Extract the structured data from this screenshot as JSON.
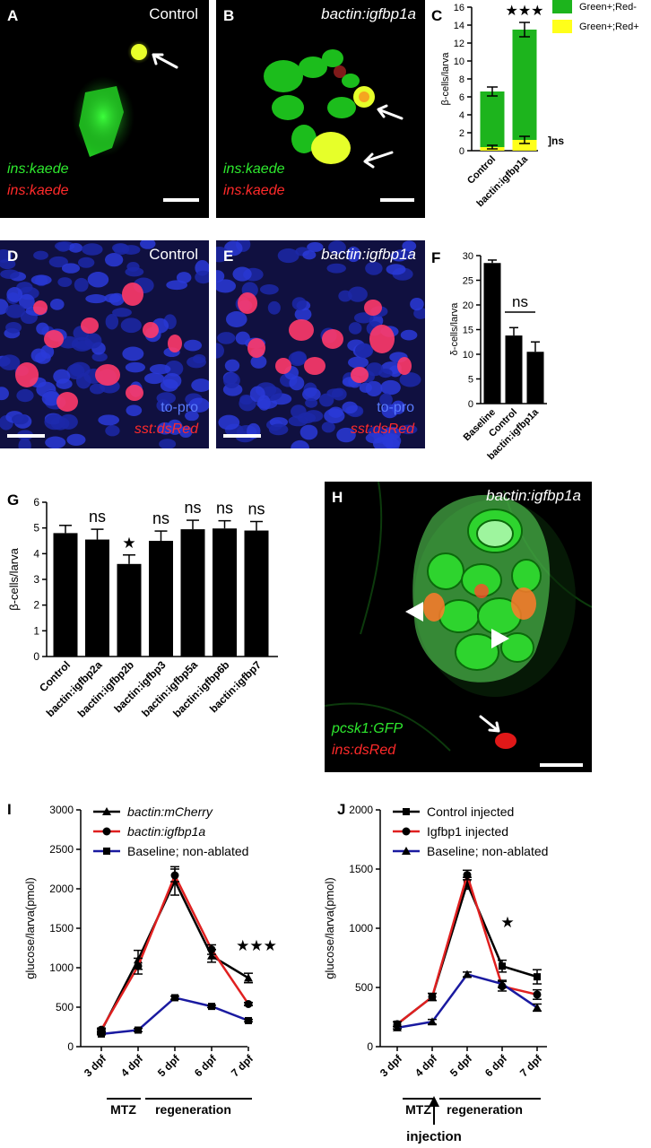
{
  "panels": {
    "A": {
      "label": "A",
      "title": "Control",
      "stain1": "ins:kaede",
      "stain2": "ins:kaede"
    },
    "B": {
      "label": "B",
      "title": "bactin:igfbp1a",
      "stain1": "ins:kaede",
      "stain2": "ins:kaede"
    },
    "D": {
      "label": "D",
      "title": "Control",
      "stain1": "to-pro",
      "stain2": "sst:dsRed"
    },
    "E": {
      "label": "E",
      "title": "bactin:igfbp1a",
      "stain1": "to-pro",
      "stain2": "sst:dsRed"
    },
    "H": {
      "label": "H",
      "title": "bactin:igfbp1a",
      "stain1": "pcsk1:GFP",
      "stain2": "ins:dsRed"
    }
  },
  "colors": {
    "green": "#1db41d",
    "yellow": "#ffff1a",
    "black": "#000000",
    "red": "#e02020",
    "blue": "#1a1aa0"
  },
  "chart_data": [
    {
      "id": "C",
      "label": "C",
      "type": "bar",
      "categories": [
        "Control",
        "bactin:igfbp1a"
      ],
      "series": [
        {
          "name": "Green+;Red-",
          "values": [
            6.6,
            13.5
          ],
          "errors": [
            0.5,
            0.8
          ]
        },
        {
          "name": "Green+;Red+",
          "values": [
            0.4,
            1.2
          ],
          "errors": [
            0.2,
            0.4
          ]
        }
      ],
      "ylabel": "β-cells/larva",
      "ylim": [
        0,
        16
      ],
      "yticks": [
        0,
        2,
        4,
        6,
        8,
        10,
        12,
        14,
        16
      ],
      "annotations": {
        "sig": "★★★",
        "ns": "]ns"
      }
    },
    {
      "id": "F",
      "label": "F",
      "type": "bar",
      "categories": [
        "Baseline",
        "Control",
        "bactin:igfbp1a"
      ],
      "values": [
        28.5,
        13.8,
        10.5
      ],
      "errors": [
        0.6,
        1.6,
        2.0
      ],
      "ylabel": "δ-cells/larva",
      "ylim": [
        0,
        30
      ],
      "yticks": [
        0,
        5,
        10,
        15,
        20,
        25,
        30
      ],
      "annotations": {
        "ns": "ns"
      }
    },
    {
      "id": "G",
      "label": "G",
      "type": "bar",
      "categories": [
        "Control",
        "bactin:igfbp2a",
        "bactin:igfbp2b",
        "bactin:igfbp3",
        "bactin:igfbp5a",
        "bactin:igfbp6b",
        "bactin:igfbp7"
      ],
      "values": [
        4.8,
        4.55,
        3.6,
        4.5,
        4.95,
        4.98,
        4.9
      ],
      "errors": [
        0.3,
        0.4,
        0.35,
        0.38,
        0.35,
        0.3,
        0.35
      ],
      "sig": [
        "",
        "ns",
        "★",
        "ns",
        "ns",
        "ns",
        "ns"
      ],
      "ylabel": "β-cells/larva",
      "ylim": [
        0,
        6
      ],
      "yticks": [
        0,
        1,
        2,
        3,
        4,
        5,
        6
      ]
    },
    {
      "id": "I",
      "label": "I",
      "type": "line",
      "categories": [
        "3 dpf",
        "4 dpf",
        "5 dpf",
        "6 dpf",
        "7 dpf"
      ],
      "series": [
        {
          "name": "bactin:mCherry",
          "values": [
            200,
            1100,
            2100,
            1150,
            870
          ],
          "errors": [
            20,
            120,
            180,
            80,
            60
          ]
        },
        {
          "name": "bactin:igfbp1a",
          "values": [
            215,
            1020,
            2170,
            1230,
            540
          ],
          "errors": [
            20,
            100,
            80,
            60,
            20
          ]
        },
        {
          "name": "Baseline; non-ablated",
          "values": [
            160,
            210,
            620,
            510,
            330
          ],
          "errors": [
            10,
            20,
            20,
            15,
            15
          ]
        }
      ],
      "ylabel": "glucose/larva(pmol)",
      "ylim": [
        0,
        3000
      ],
      "yticks": [
        0,
        500,
        1000,
        1500,
        2000,
        2500,
        3000
      ],
      "annotations": {
        "sig": "★★★",
        "bracket1": "MTZ",
        "bracket2": "regeneration"
      }
    },
    {
      "id": "J",
      "label": "J",
      "type": "line",
      "categories": [
        "3 dpf",
        "4 dpf",
        "5 dpf",
        "6 dpf",
        "7 dpf"
      ],
      "series": [
        {
          "name": "Control injected",
          "values": [
            190,
            420,
            1380,
            680,
            590
          ],
          "errors": [
            20,
            30,
            50,
            50,
            60
          ]
        },
        {
          "name": "Igfbp1 injected",
          "values": [
            190,
            420,
            1450,
            510,
            440
          ],
          "errors": [
            20,
            30,
            40,
            40,
            40
          ]
        },
        {
          "name": "Baseline; non-ablated",
          "values": [
            160,
            210,
            610,
            530,
            330
          ],
          "errors": [
            10,
            20,
            20,
            30,
            30
          ]
        }
      ],
      "ylabel": "glucose/larva(pmol)",
      "ylim": [
        0,
        2000
      ],
      "yticks": [
        0,
        500,
        1000,
        1500,
        2000
      ],
      "annotations": {
        "sig": "★",
        "bracket1": "MTZ",
        "bracket2": "regeneration",
        "arrow": "injection"
      }
    }
  ]
}
